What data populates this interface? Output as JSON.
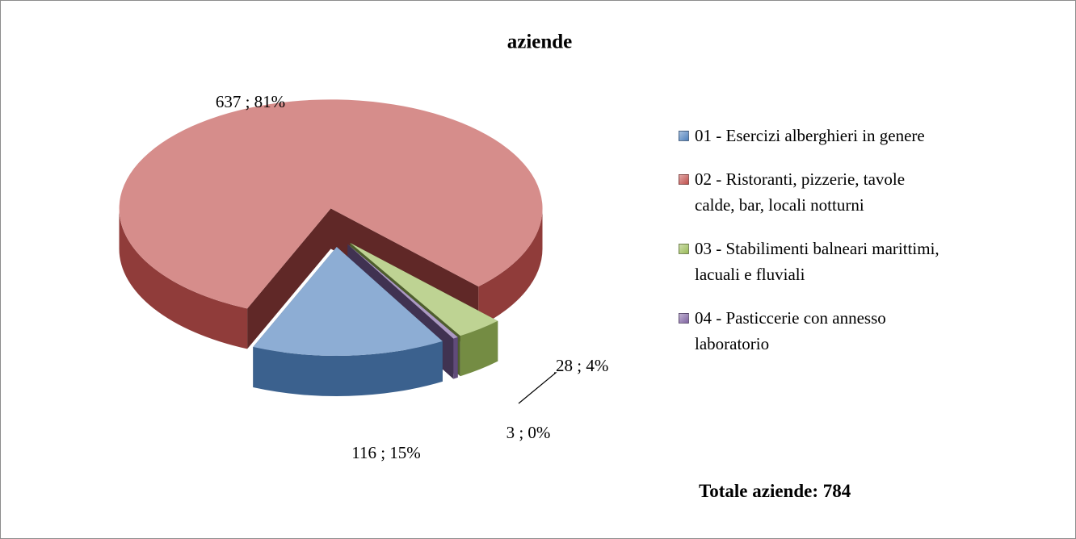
{
  "chart_data": {
    "type": "pie",
    "title": "aziende",
    "categories": [
      "01 - Esercizi alberghieri in genere",
      "02 - Ristoranti, pizzerie, tavole calde, bar, locali notturni",
      "03 - Stabilimenti balneari marittimi, lacuali e fluviali",
      "04 - Pasticcerie con annesso laboratorio"
    ],
    "values": [
      116,
      637,
      28,
      3
    ],
    "value_labels": [
      "116 ; 15%",
      "637 ; 81%",
      "28 ; 4%",
      "3 ; 0%"
    ],
    "colors": [
      "#4f81bd",
      "#c0504d",
      "#9bbb59",
      "#8064a2"
    ],
    "legend": "right",
    "annotation": "Totale aziende: 784"
  }
}
